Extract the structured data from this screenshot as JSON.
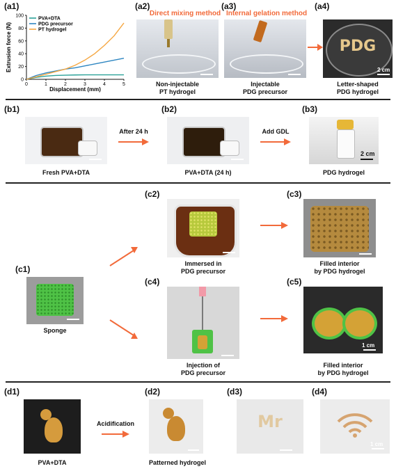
{
  "panel_labels": {
    "a1": "(a1)",
    "a2": "(a2)",
    "a3": "(a3)",
    "a4": "(a4)",
    "b1": "(b1)",
    "b2": "(b2)",
    "b3": "(b3)",
    "c1": "(c1)",
    "c2": "(c2)",
    "c3": "(c3)",
    "c4": "(c4)",
    "c5": "(c5)",
    "d1": "(d1)",
    "d2": "(d2)",
    "d3": "(d3)",
    "d4": "(d4)"
  },
  "methods": {
    "direct": "Direct mixing method",
    "internal": "Internal gelation method"
  },
  "captions": {
    "a2_l1": "Non-injectable",
    "a2_l2": "PT hydrogel",
    "a3_l1": "Injectable",
    "a3_l2": "PDG precursor",
    "a4_l1": "Letter-shaped",
    "a4_l2": "PDG hydrogel",
    "b1": "Fresh PVA+DTA",
    "b2": "PVA+DTA (24 h)",
    "b3": "PDG hydrogel",
    "c1": "Sponge",
    "c2_l1": "Immersed in",
    "c2_l2": "PDG precursor",
    "c3_l1": "Filled interior",
    "c3_l2": "by PDG hydrogel",
    "c4_l1": "Injection of",
    "c4_l2": "PDG precursor",
    "c5_l1": "Filled interior",
    "c5_l2": "by PDG hydrogel",
    "d1": "PVA+DTA",
    "d2": "Patterned hydrogel"
  },
  "arrow_labels": {
    "after24": "After 24 h",
    "addgdl": "Add GDL",
    "acid": "Acidification"
  },
  "scale_labels": {
    "a4": "2 cm",
    "b3": "2 cm",
    "c5": "1 cm",
    "d4": "1 cm"
  },
  "photo_text": {
    "a4_letters": "PDG",
    "d3_letters": "Mr"
  },
  "colors": {
    "arrow": "#f26a3a",
    "pva_dta": "#2aa198",
    "pdg": "#2e86c1",
    "pt": "#f5a742",
    "gel": "#c98a32"
  },
  "chart_data": {
    "type": "line",
    "xlabel": "Displacement (mm)",
    "ylabel": "Extrusion force (N)",
    "xlim": [
      0,
      5
    ],
    "ylim": [
      0,
      100
    ],
    "xticks": [
      0,
      1,
      2,
      3,
      4,
      5
    ],
    "yticks": [
      0,
      20,
      40,
      60,
      80,
      100
    ],
    "legend_position": "top-left",
    "series": [
      {
        "name": "PVA+DTA",
        "color": "#2aa198",
        "x": [
          0,
          0.5,
          1,
          1.5,
          2,
          2.5,
          3,
          3.5,
          4,
          4.5,
          5
        ],
        "y": [
          0,
          3,
          5,
          6,
          6.5,
          6.8,
          7,
          7,
          7,
          7,
          7
        ]
      },
      {
        "name": "PDG precursor",
        "color": "#2e86c1",
        "x": [
          0,
          0.5,
          1,
          1.5,
          2,
          2.5,
          3,
          3.5,
          4,
          4.5,
          5
        ],
        "y": [
          0,
          6,
          10,
          13,
          16,
          18,
          21,
          24,
          27,
          30,
          33
        ]
      },
      {
        "name": "PT hydrogel",
        "color": "#f5a742",
        "x": [
          0,
          0.5,
          1,
          1.5,
          2,
          2.5,
          3,
          3.5,
          4,
          4.5,
          5
        ],
        "y": [
          0,
          4,
          8,
          12,
          16,
          22,
          30,
          40,
          53,
          68,
          88
        ]
      }
    ]
  }
}
